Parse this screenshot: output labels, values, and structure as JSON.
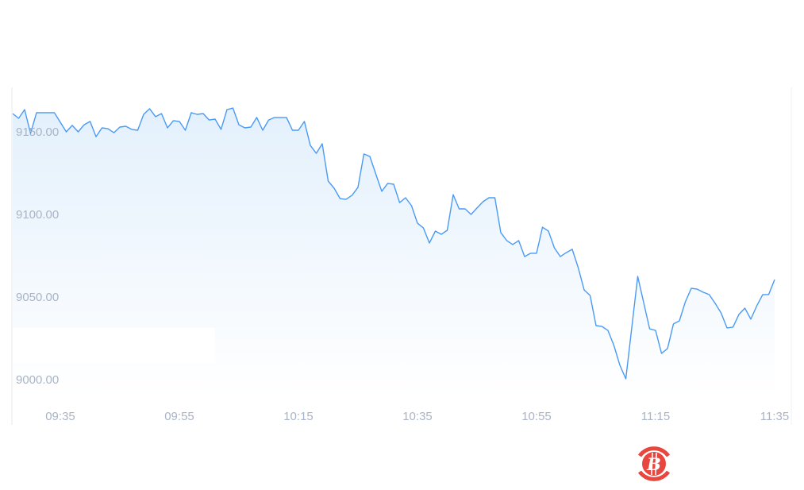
{
  "chart_data": {
    "type": "area",
    "title": "",
    "xlabel": "",
    "ylabel": "",
    "ylim": [
      8990,
      9180
    ],
    "xlim": [
      "09:27",
      "11:38"
    ],
    "grid": false,
    "y_ticks": [
      "9000.00",
      "9050.00",
      "9100.00",
      "9150.00"
    ],
    "x_ticks": [
      "09:35",
      "09:55",
      "10:15",
      "10:35",
      "10:55",
      "11:15",
      "11:35"
    ],
    "line_color": "#4a9af5",
    "fill_color": "#e6f2fc",
    "series": [
      {
        "x": [
          "09:27",
          "09:28",
          "09:29",
          "09:30",
          "09:31",
          "09:34",
          "09:36",
          "09:37",
          "09:38",
          "09:39",
          "09:40",
          "09:41",
          "09:42",
          "09:43",
          "09:44",
          "09:45",
          "09:46",
          "09:47",
          "09:48",
          "09:49",
          "09:50",
          "09:51",
          "09:52",
          "09:53",
          "09:54",
          "09:55",
          "09:56",
          "09:57",
          "09:58",
          "09:59",
          "10:00",
          "10:01",
          "10:02",
          "10:03",
          "10:04",
          "10:05",
          "10:06",
          "10:07",
          "10:08",
          "10:09",
          "10:10",
          "10:11",
          "10:13",
          "10:14",
          "10:15",
          "10:16",
          "10:17",
          "10:18",
          "10:19",
          "10:20",
          "10:21",
          "10:22",
          "10:23",
          "10:24",
          "10:25",
          "10:26",
          "10:27",
          "10:28",
          "10:29",
          "10:30",
          "10:31",
          "10:32",
          "10:33",
          "10:34",
          "10:35",
          "10:36",
          "10:37",
          "10:38",
          "10:39",
          "10:40",
          "10:41",
          "10:42",
          "10:43",
          "10:44",
          "10:45",
          "10:46",
          "10:47",
          "10:48",
          "10:49",
          "10:50",
          "10:51",
          "10:52",
          "10:53",
          "10:54",
          "10:55",
          "10:56",
          "10:57",
          "10:58",
          "10:59",
          "11:00",
          "11:01",
          "11:02",
          "11:03",
          "11:04",
          "11:05",
          "11:06",
          "11:07",
          "11:08",
          "11:09",
          "11:10",
          "11:12",
          "11:14",
          "11:15",
          "11:16",
          "11:17",
          "11:18",
          "11:19",
          "11:20",
          "11:21",
          "11:22",
          "11:23",
          "11:24",
          "11:25",
          "11:26",
          "11:27",
          "11:28",
          "11:29",
          "11:30",
          "11:31",
          "11:32",
          "11:33",
          "11:34",
          "11:35"
        ],
        "values": [
          9160.6,
          9157.7,
          9163.0,
          9148.6,
          9161.1,
          9161.1,
          9149.5,
          9153.4,
          9149.5,
          9153.8,
          9155.8,
          9146.6,
          9151.9,
          9151.4,
          9149.0,
          9152.4,
          9152.9,
          9151.0,
          9150.5,
          9160.1,
          9163.5,
          9158.7,
          9160.6,
          9151.9,
          9156.3,
          9155.8,
          9150.5,
          9161.1,
          9160.1,
          9160.6,
          9156.7,
          9157.2,
          9151.0,
          9163.0,
          9163.9,
          9153.8,
          9151.9,
          9152.4,
          9158.2,
          9150.5,
          9156.7,
          9158.2,
          9158.2,
          9150.5,
          9150.5,
          9155.8,
          9141.3,
          9136.5,
          9142.3,
          9119.7,
          9115.4,
          9109.1,
          9108.7,
          9111.1,
          9115.9,
          9136.1,
          9134.6,
          9124.0,
          9113.5,
          9118.3,
          9117.8,
          9106.7,
          9109.6,
          9104.8,
          9094.2,
          9091.3,
          9082.2,
          9089.4,
          9087.5,
          9089.9,
          9111.5,
          9102.9,
          9102.9,
          9099.5,
          9103.4,
          9107.2,
          9109.6,
          9109.6,
          9088.5,
          9083.7,
          9081.3,
          9083.7,
          9074.0,
          9076.0,
          9076.0,
          9091.8,
          9089.4,
          9079.3,
          9074.0,
          9076.4,
          9078.4,
          9067.3,
          9053.8,
          9050.5,
          9032.2,
          9031.7,
          9029.3,
          9020.2,
          9008.2,
          9000.0,
          9062.0,
          9030.3,
          9029.3,
          9015.4,
          9018.3,
          9033.2,
          9035.1,
          9046.6,
          9054.8,
          9054.3,
          9052.4,
          9051.0,
          9045.7,
          9039.9,
          9030.8,
          9031.3,
          9039.0,
          9042.8,
          9036.1,
          9044.2,
          9051.0,
          9051.0,
          9060.1
        ]
      }
    ]
  },
  "logo": {
    "icon": "bitcoin-icon",
    "color": "#e8473f"
  }
}
